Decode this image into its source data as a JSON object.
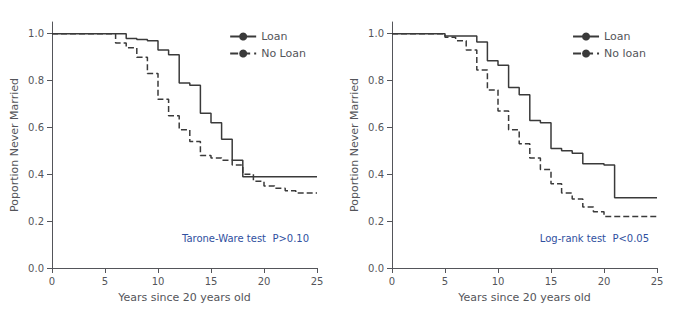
{
  "chart_data": [
    {
      "type": "step",
      "xlabel": "Years since 20 years old",
      "ylabel": "Poportion Never Married",
      "xlim": [
        0,
        25
      ],
      "ylim": [
        0.0,
        1.05
      ],
      "xticks": [
        0,
        5,
        10,
        15,
        20,
        25
      ],
      "yticks": [
        {
          "value": 0.0,
          "label": "0.0"
        },
        0.2,
        0.4,
        0.6,
        0.8,
        {
          "value": 1.0,
          "label": "1.0"
        }
      ],
      "grid": false,
      "legend": "upper right",
      "series": [
        {
          "name": "Loan",
          "color": "#3a3a3a",
          "line_style": "solid",
          "x": [
            0,
            6,
            7,
            8,
            9,
            10,
            11,
            12,
            13,
            14,
            15,
            16,
            17,
            18,
            19,
            25
          ],
          "values": [
            1.0,
            1.0,
            0.98,
            0.975,
            0.97,
            0.93,
            0.91,
            0.79,
            0.78,
            0.66,
            0.62,
            0.55,
            0.46,
            0.39,
            0.39,
            0.39
          ]
        },
        {
          "name": "No Loan",
          "color": "#3a3a3a",
          "line_style": "dashed",
          "x": [
            0,
            5,
            6,
            7,
            8,
            9,
            10,
            11,
            12,
            13,
            14,
            15,
            16,
            17,
            18,
            19,
            20,
            21,
            22,
            23,
            25
          ],
          "values": [
            1.0,
            1.0,
            0.96,
            0.94,
            0.9,
            0.83,
            0.72,
            0.65,
            0.59,
            0.54,
            0.48,
            0.47,
            0.46,
            0.44,
            0.4,
            0.37,
            0.35,
            0.34,
            0.33,
            0.32,
            0.32
          ]
        }
      ],
      "annotations": [
        {
          "text": "Tarone-Ware test  P>0.10",
          "color": "#3050A0"
        }
      ]
    },
    {
      "type": "step",
      "xlabel": "Years since 20 years old",
      "ylabel": "Poportion Never Married",
      "xlim": [
        0,
        25
      ],
      "ylim": [
        0.0,
        1.05
      ],
      "xticks": [
        0,
        5,
        10,
        15,
        20,
        25
      ],
      "yticks": [
        {
          "value": 0.0,
          "label": "0.0"
        },
        0.2,
        0.4,
        0.6,
        0.8,
        {
          "value": 1.0,
          "label": "1.0"
        }
      ],
      "grid": false,
      "legend": "upper right",
      "series": [
        {
          "name": "Loan",
          "color": "#3a3a3a",
          "line_style": "solid",
          "x": [
            0,
            5,
            6,
            7,
            8,
            9,
            10,
            11,
            12,
            13,
            14,
            15,
            16,
            17,
            18,
            19,
            20,
            21,
            25
          ],
          "values": [
            1.0,
            0.99,
            0.99,
            0.99,
            0.965,
            0.885,
            0.865,
            0.77,
            0.74,
            0.63,
            0.62,
            0.51,
            0.5,
            0.49,
            0.445,
            0.445,
            0.44,
            0.3,
            0.3
          ]
        },
        {
          "name": "No loan",
          "color": "#3a3a3a",
          "line_style": "dashed",
          "x": [
            0,
            5,
            6,
            7,
            8,
            9,
            10,
            11,
            12,
            13,
            14,
            15,
            16,
            17,
            18,
            19,
            20,
            21,
            22,
            25
          ],
          "values": [
            1.0,
            0.985,
            0.97,
            0.93,
            0.845,
            0.76,
            0.67,
            0.59,
            0.53,
            0.47,
            0.42,
            0.36,
            0.32,
            0.295,
            0.26,
            0.24,
            0.22,
            0.22,
            0.22,
            0.22
          ]
        }
      ],
      "annotations": [
        {
          "text": "Log-rank test  P<0.05",
          "color": "#3050A0"
        }
      ]
    }
  ]
}
